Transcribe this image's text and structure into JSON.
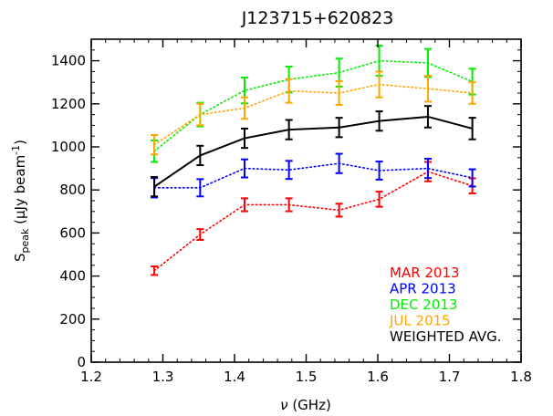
{
  "chart_data": {
    "type": "line",
    "title": "J123715+620823",
    "xlabel": {
      "main": "ν",
      "rest": " (GHz)"
    },
    "ylabel": {
      "main": "S",
      "sub": "peak",
      "rest": " (μJy beam",
      "sup": "-1",
      "close": ")"
    },
    "xlim": [
      1.2,
      1.8
    ],
    "ylim": [
      0,
      1500
    ],
    "xticks": [
      1.2,
      1.3,
      1.4,
      1.5,
      1.6,
      1.7,
      1.8
    ],
    "xtick_labels": [
      "1.2",
      "1.3",
      "1.4",
      "1.5",
      "1.6",
      "1.7",
      "1.8"
    ],
    "yticks": [
      0,
      200,
      400,
      600,
      800,
      1000,
      1200,
      1400
    ],
    "ytick_labels": [
      "0",
      "200",
      "400",
      "600",
      "800",
      "1000",
      "1200",
      "1400"
    ],
    "grid": false,
    "legend_position": "bottom-right",
    "x": [
      1.288,
      1.352,
      1.414,
      1.476,
      1.546,
      1.602,
      1.67,
      1.732
    ],
    "series": [
      {
        "name": "MAR 2013",
        "color": "#ff0000",
        "style": "dotted",
        "values": [
          425,
          593,
          731,
          731,
          706,
          757,
          885,
          819
        ],
        "errors": [
          20,
          25,
          30,
          30,
          30,
          35,
          45,
          35
        ]
      },
      {
        "name": "APR 2013",
        "color": "#0000ff",
        "style": "dotted",
        "values": [
          810,
          810,
          900,
          893,
          923,
          890,
          900,
          856
        ],
        "errors": [
          45,
          40,
          42,
          42,
          45,
          42,
          45,
          40
        ]
      },
      {
        "name": "DEC 2013",
        "color": "#00ee00",
        "style": "dotted",
        "values": [
          980,
          1150,
          1262,
          1313,
          1345,
          1400,
          1390,
          1303
        ],
        "errors": [
          50,
          55,
          60,
          60,
          65,
          70,
          65,
          60
        ]
      },
      {
        "name": "JUL 2015",
        "color": "#ffa500",
        "style": "dotted",
        "values": [
          1010,
          1150,
          1180,
          1260,
          1250,
          1290,
          1270,
          1250
        ],
        "errors": [
          45,
          50,
          50,
          55,
          55,
          60,
          60,
          50
        ]
      },
      {
        "name": "WEIGHTED AVG.",
        "color": "#000000",
        "style": "solid",
        "values": [
          815,
          960,
          1040,
          1080,
          1090,
          1120,
          1140,
          1085
        ],
        "errors": [
          45,
          45,
          45,
          45,
          45,
          45,
          50,
          50
        ]
      }
    ]
  }
}
